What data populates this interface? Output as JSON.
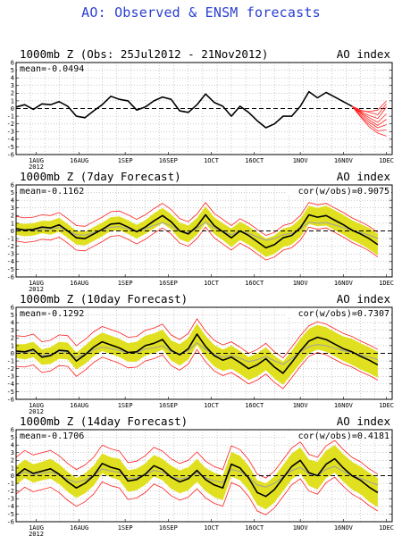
{
  "main_title": "AO: Observed & ENSM forecasts",
  "y_ticks": [
    "6",
    "5",
    "4",
    "3",
    "2",
    "1",
    "0",
    "-1",
    "-2",
    "-3",
    "-4",
    "-5",
    "-6"
  ],
  "x_ticks": [
    "1AUG",
    "16AUG",
    "1SEP",
    "16SEP",
    "1OCT",
    "16OCT",
    "1NOV",
    "16NOV",
    "1DEC"
  ],
  "x_year": "2012",
  "colors": {
    "observed": "#000000",
    "spread": "#e0e020",
    "members": "#ff2020",
    "ensemble_mean": "#a0a0a0",
    "title": "#2a3fd0"
  },
  "chart_data": [
    {
      "type": "line",
      "title": "1000mb Z (Obs: 25Jul2012 - 21Nov2012)",
      "right_label": "AO index",
      "mean_label": "mean=-0.0494",
      "cor_label": "",
      "ylim": [
        -6,
        6
      ],
      "x": [
        0,
        3,
        6,
        9,
        12,
        15,
        18,
        21,
        24,
        27,
        30,
        33,
        36,
        39,
        42,
        45,
        48,
        51,
        54,
        57,
        60,
        63,
        66,
        69,
        72,
        75,
        78,
        81,
        84,
        87,
        90,
        93,
        96,
        99,
        102,
        105,
        108,
        111,
        114,
        117
      ],
      "observed": [
        0.2,
        0.5,
        -0.1,
        0.6,
        0.5,
        0.9,
        0.3,
        -1.0,
        -1.2,
        -0.3,
        0.5,
        1.6,
        1.2,
        1.0,
        -0.2,
        0.2,
        1.0,
        1.5,
        1.2,
        -0.3,
        -0.5,
        0.5,
        1.9,
        0.8,
        0.3,
        -1.0,
        0.3,
        -0.5,
        -1.6,
        -2.5,
        -2.0,
        -1.0,
        -1.0,
        0.3,
        2.2,
        1.4,
        2.1,
        1.5,
        0.9,
        0.3
      ],
      "forecast_x": [
        117,
        120,
        123,
        126,
        129
      ],
      "members": [
        [
          0.3,
          -0.2,
          -0.5,
          -0.8,
          0.6
        ],
        [
          0.3,
          -0.5,
          -1.2,
          -1.8,
          -0.7
        ],
        [
          0.3,
          -0.8,
          -1.8,
          -2.5,
          -2.1
        ],
        [
          0.3,
          -1.1,
          -2.4,
          -3.2,
          -3.6
        ],
        [
          0.3,
          -0.4,
          -0.9,
          -1.3,
          0.2
        ],
        [
          0.3,
          -0.6,
          -1.5,
          -2.2,
          -1.4
        ],
        [
          0.3,
          -1.0,
          -2.1,
          -2.9,
          -2.8
        ],
        [
          0.3,
          -0.3,
          -0.4,
          -0.2,
          1.0
        ]
      ]
    },
    {
      "type": "line",
      "title": "1000mb Z (7day Forecast)",
      "right_label": "AO index",
      "mean_label": "mean=-0.1162",
      "cor_label": "cor(w/obs)=0.9075",
      "ylim": [
        -6,
        6
      ],
      "x": [
        0,
        3,
        6,
        9,
        12,
        15,
        18,
        21,
        24,
        27,
        30,
        33,
        36,
        39,
        42,
        45,
        48,
        51,
        54,
        57,
        60,
        63,
        66,
        69,
        72,
        75,
        78,
        81,
        84,
        87,
        90,
        93,
        96,
        99,
        102,
        105,
        108,
        111,
        114,
        117,
        120,
        123,
        126
      ],
      "observed": [
        0.3,
        0.1,
        0.2,
        0.5,
        0.4,
        0.8,
        0.0,
        -0.9,
        -1.0,
        -0.4,
        0.2,
        0.9,
        1.0,
        0.5,
        -0.1,
        0.5,
        1.3,
        2.0,
        1.2,
        0.0,
        -0.4,
        0.6,
        2.1,
        0.7,
        -0.1,
        -0.9,
        0.0,
        -0.6,
        -1.4,
        -2.2,
        -1.8,
        -0.9,
        -0.6,
        0.4,
        2.1,
        1.8,
        2.0,
        1.4,
        0.8,
        0.1,
        -0.4,
        -1.0,
        -1.8
      ],
      "spread": [
        0.8,
        0.8,
        0.8,
        0.8,
        0.9,
        0.9,
        0.9,
        0.9,
        0.9,
        0.9,
        0.9,
        0.9,
        0.9,
        0.9,
        0.9,
        0.9,
        1.0,
        1.0,
        1.0,
        1.1,
        1.1,
        1.1,
        1.1,
        1.1,
        1.1,
        1.2,
        1.2,
        1.2,
        1.2,
        1.2,
        1.2,
        1.2,
        1.2,
        1.2,
        1.2,
        1.2,
        1.3,
        1.3,
        1.3,
        1.3,
        1.3,
        1.4,
        1.4
      ],
      "envelope": 1.6
    },
    {
      "type": "line",
      "title": "1000mb Z (10day Forecast)",
      "right_label": "AO index",
      "mean_label": "mean=-0.1292",
      "cor_label": "cor(w/obs)=0.7307",
      "ylim": [
        -6,
        6
      ],
      "x": [
        0,
        3,
        6,
        9,
        12,
        15,
        18,
        21,
        24,
        27,
        30,
        33,
        36,
        39,
        42,
        45,
        48,
        51,
        54,
        57,
        60,
        63,
        66,
        69,
        72,
        75,
        78,
        81,
        84,
        87,
        90,
        93,
        96,
        99,
        102,
        105,
        108,
        111,
        114,
        117,
        120,
        123,
        126
      ],
      "observed": [
        0.3,
        0.2,
        0.5,
        -0.5,
        -0.3,
        0.4,
        0.3,
        -1.0,
        -0.2,
        0.8,
        1.5,
        1.1,
        0.7,
        0.1,
        0.2,
        1.0,
        1.3,
        1.8,
        0.4,
        -0.2,
        0.6,
        2.5,
        0.9,
        -0.3,
        -0.9,
        -0.5,
        -1.2,
        -2.0,
        -1.5,
        -0.7,
        -1.8,
        -2.6,
        -1.2,
        0.3,
        1.6,
        2.1,
        1.8,
        1.2,
        0.6,
        0.2,
        -0.4,
        -0.9,
        -1.5
      ],
      "spread": [
        0.9,
        1.0,
        1.0,
        1.0,
        1.1,
        1.1,
        1.1,
        1.1,
        1.2,
        1.2,
        1.2,
        1.2,
        1.2,
        1.2,
        1.3,
        1.3,
        1.3,
        1.3,
        1.3,
        1.4,
        1.4,
        1.4,
        1.4,
        1.4,
        1.4,
        1.5,
        1.5,
        1.5,
        1.5,
        1.5,
        1.5,
        1.5,
        1.5,
        1.6,
        1.6,
        1.6,
        1.6,
        1.6,
        1.6,
        1.7,
        1.7,
        1.7,
        1.7
      ],
      "envelope": 2.0
    },
    {
      "type": "line",
      "title": "1000mb Z (14day Forecast)",
      "right_label": "AO index",
      "mean_label": "mean=-0.1706",
      "cor_label": "cor(w/obs)=0.4181",
      "ylim": [
        -6,
        6
      ],
      "x": [
        0,
        3,
        6,
        9,
        12,
        15,
        18,
        21,
        24,
        27,
        30,
        33,
        36,
        39,
        42,
        45,
        48,
        51,
        54,
        57,
        60,
        63,
        66,
        69,
        72,
        75,
        78,
        81,
        84,
        87,
        90,
        93,
        96,
        99,
        102,
        105,
        108,
        111,
        114,
        117,
        120,
        123,
        126
      ],
      "observed": [
        0.0,
        0.9,
        0.3,
        0.6,
        0.9,
        0.2,
        -0.8,
        -1.6,
        -1.0,
        0.0,
        1.6,
        1.1,
        0.8,
        -0.7,
        -0.5,
        0.2,
        1.3,
        0.8,
        -0.2,
        -0.8,
        -0.4,
        0.7,
        -0.5,
        -1.2,
        -1.6,
        1.5,
        1.0,
        -0.3,
        -2.2,
        -2.7,
        -1.8,
        -0.3,
        1.2,
        2.0,
        0.4,
        0.0,
        1.5,
        2.2,
        1.0,
        0.0,
        -0.6,
        -1.5,
        -2.2
      ],
      "spread": [
        1.2,
        1.2,
        1.2,
        1.2,
        1.3,
        1.3,
        1.3,
        1.3,
        1.3,
        1.3,
        1.3,
        1.3,
        1.4,
        1.4,
        1.4,
        1.4,
        1.4,
        1.4,
        1.5,
        1.5,
        1.5,
        1.5,
        1.5,
        1.6,
        1.6,
        1.6,
        1.6,
        1.6,
        1.6,
        1.7,
        1.7,
        1.7,
        1.7,
        1.7,
        1.7,
        1.8,
        1.8,
        1.8,
        1.8,
        1.8,
        1.8,
        1.9,
        1.9
      ],
      "envelope": 2.4
    }
  ]
}
